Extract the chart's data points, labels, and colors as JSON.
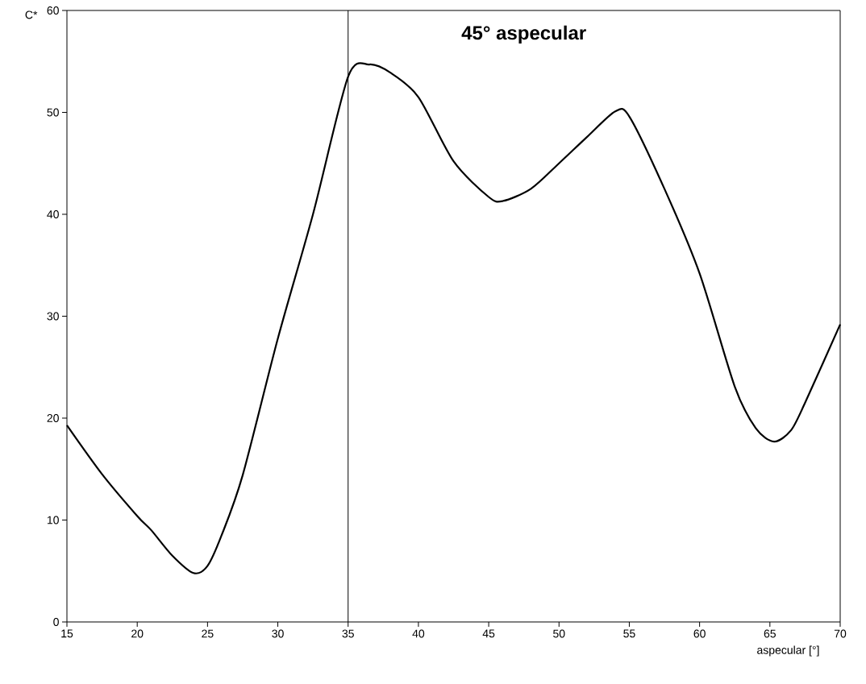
{
  "chart_data": {
    "type": "line",
    "title": "45° aspecular",
    "xlabel": "aspecular [°]",
    "ylabel": "C*",
    "x": [
      15,
      17.5,
      20,
      21,
      22.5,
      24,
      25,
      26,
      27.5,
      30,
      32.5,
      35,
      36.5,
      38,
      40,
      42.5,
      45,
      46,
      48,
      50,
      52,
      54,
      55,
      57.5,
      60,
      62.5,
      64,
      65.3,
      66.5,
      67.5,
      70
    ],
    "series": [
      {
        "color": "#000000",
        "values": [
          19.3,
          14.5,
          10.4,
          9.0,
          6.5,
          4.8,
          5.5,
          8.5,
          14.4,
          27.8,
          40.0,
          53.5,
          54.7,
          53.9,
          51.5,
          45.2,
          41.7,
          41.3,
          42.5,
          45.0,
          47.6,
          50.1,
          49.6,
          42.5,
          34.2,
          23.1,
          19.0,
          17.7,
          18.8,
          21.5,
          29.2
        ]
      }
    ],
    "xlim": [
      15,
      70
    ],
    "ylim": [
      0,
      60
    ],
    "xticks": [
      15,
      20,
      25,
      30,
      35,
      40,
      45,
      50,
      55,
      60,
      65,
      70
    ],
    "yticks": [
      0,
      10,
      20,
      30,
      40,
      50,
      60
    ],
    "ref_lines": [
      {
        "axis": "x",
        "value": 35,
        "color": "#000000"
      }
    ],
    "grid": false,
    "marker": "none",
    "line_style": "solid"
  }
}
